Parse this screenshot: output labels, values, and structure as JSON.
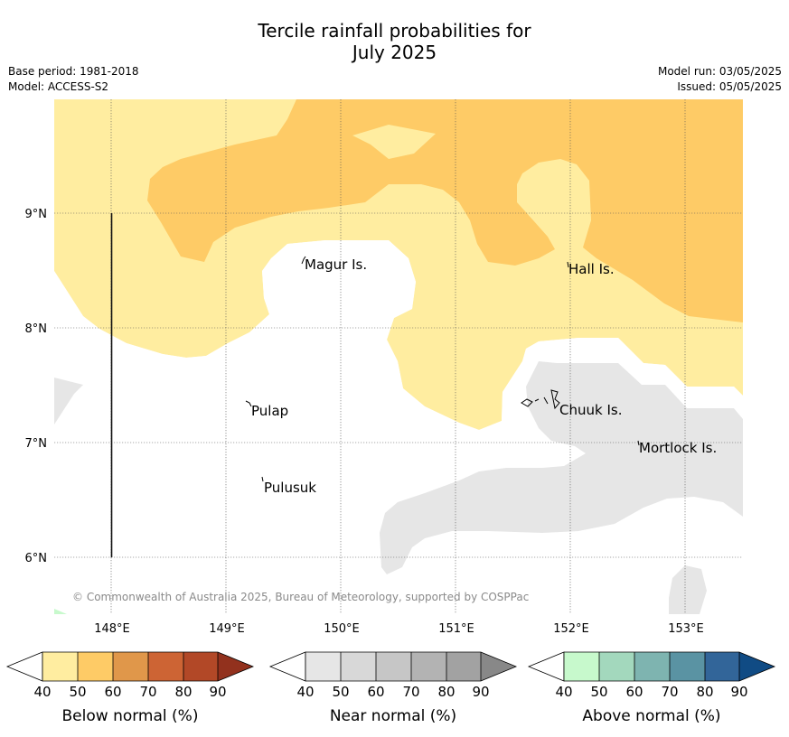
{
  "title": {
    "line1": "Tercile rainfall probabilities for",
    "line2": "July 2025"
  },
  "meta": {
    "base_period": "Base period: 1981-2018",
    "model": "Model: ACCESS-S2",
    "model_run": "Model run: 03/05/2025",
    "issued": "Issued: 05/05/2025"
  },
  "map": {
    "lat_labels": [
      "9°N",
      "8°N",
      "7°N",
      "6°N"
    ],
    "lon_labels": [
      "148°E",
      "149°E",
      "150°E",
      "151°E",
      "152°E",
      "153°E"
    ],
    "places": [
      "Magur Is.",
      "Hall Is.",
      "Pulap",
      "Chuuk Is.",
      "Mortlock Is.",
      "Pulusuk"
    ],
    "copyright": "© Commonwealth of Australia 2025, Bureau of Meteorology, supported by COSPPac",
    "colors": {
      "below_40": "#ffeda0",
      "below_50": "#fecb66",
      "near_40": "#e6e6e6",
      "above_40": "#c7f9cc",
      "grid": "#555555"
    }
  },
  "legends": [
    {
      "title": "Below normal (%)",
      "ticks": [
        "40",
        "50",
        "60",
        "70",
        "80",
        "90"
      ],
      "colors": [
        "#ffeda0",
        "#fecb66",
        "#e0974a",
        "#cd6434",
        "#b24827",
        "#92311d"
      ]
    },
    {
      "title": "Near normal (%)",
      "ticks": [
        "40",
        "50",
        "60",
        "70",
        "80",
        "90"
      ],
      "colors": [
        "#e6e6e6",
        "#d8d8d8",
        "#c6c6c6",
        "#b3b3b3",
        "#a2a2a2",
        "#888888"
      ]
    },
    {
      "title": "Above normal (%)",
      "ticks": [
        "40",
        "50",
        "60",
        "70",
        "80",
        "90"
      ],
      "colors": [
        "#c7f9cc",
        "#a3d8bd",
        "#7eb4b0",
        "#5a93a3",
        "#326599",
        "#104b84"
      ]
    }
  ]
}
